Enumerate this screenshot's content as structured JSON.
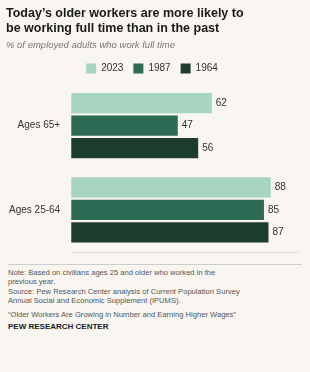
{
  "chart_data": {
    "type": "bar",
    "orientation": "horizontal",
    "title": "Today’s older workers are more likely to\nbe working full time than in the past",
    "subtitle": "% of employed adults who work full time",
    "categories": [
      "Ages 65+",
      "Ages 25-64"
    ],
    "series": [
      {
        "name": "2023",
        "color": "#a8d5c2",
        "values": [
          62,
          88
        ]
      },
      {
        "name": "1987",
        "color": "#2e6b55",
        "values": [
          47,
          85
        ]
      },
      {
        "name": "1964",
        "color": "#1c3d2e",
        "values": [
          56,
          87
        ]
      }
    ],
    "xlim": [
      0,
      100
    ],
    "grid": false,
    "legend": "top",
    "data_labels": true,
    "tick_labels": "y",
    "annotations": [
      "Note: Based on civilians ages 25 and older who worked in the",
      "previous year.",
      "Source: Pew Research Center analysis of Current Population Survey",
      "Annual Social and Economic Supplement (IPUMS).",
      "“Older Workers Are Growing in Number and Earning Higher Wages”",
      "PEW RESEARCH CENTER"
    ]
  }
}
